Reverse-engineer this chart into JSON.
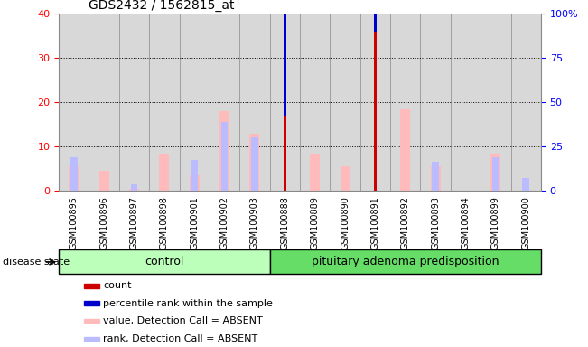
{
  "title": "GDS2432 / 1562815_at",
  "samples": [
    "GSM100895",
    "GSM100896",
    "GSM100897",
    "GSM100898",
    "GSM100901",
    "GSM100902",
    "GSM100903",
    "GSM100888",
    "GSM100889",
    "GSM100890",
    "GSM100891",
    "GSM100892",
    "GSM100893",
    "GSM100894",
    "GSM100899",
    "GSM100900"
  ],
  "n_control": 7,
  "n_pituitary": 9,
  "count": [
    0,
    0,
    0,
    0,
    0,
    0,
    0,
    17,
    0,
    0,
    36,
    0,
    0,
    0,
    0,
    0
  ],
  "percentile": [
    0,
    0,
    0,
    0,
    0,
    0,
    0,
    40,
    0,
    0,
    48,
    0,
    0,
    0,
    0,
    0
  ],
  "value_absent": [
    5.5,
    4.5,
    0.5,
    8.5,
    3.5,
    18,
    13,
    0,
    8.5,
    5.5,
    0,
    18.5,
    5.5,
    0,
    8.5,
    0
  ],
  "rank_absent": [
    7.5,
    0,
    1.5,
    0,
    7.0,
    15.5,
    12,
    0,
    0,
    0,
    0,
    0,
    6.5,
    0,
    7.5,
    3.0
  ],
  "ylim_left": [
    0,
    40
  ],
  "yticks_left": [
    0,
    10,
    20,
    30,
    40
  ],
  "yticks_right_labels": [
    "0",
    "25",
    "50",
    "75",
    "100%"
  ],
  "yticks_right_vals": [
    0,
    10,
    20,
    30,
    40
  ],
  "color_count": "#cc0000",
  "color_percentile": "#0000cc",
  "color_value_absent": "#ffbbbb",
  "color_rank_absent": "#bbbbff",
  "color_control_bg": "#bbffbb",
  "color_pituitary_bg": "#66dd66",
  "color_sample_bg": "#d8d8d8",
  "color_sample_border": "#888888",
  "group_label_control": "control",
  "group_label_pituitary": "pituitary adenoma predisposition",
  "disease_state_label": "disease state",
  "legend": [
    "count",
    "percentile rank within the sample",
    "value, Detection Call = ABSENT",
    "rank, Detection Call = ABSENT"
  ]
}
